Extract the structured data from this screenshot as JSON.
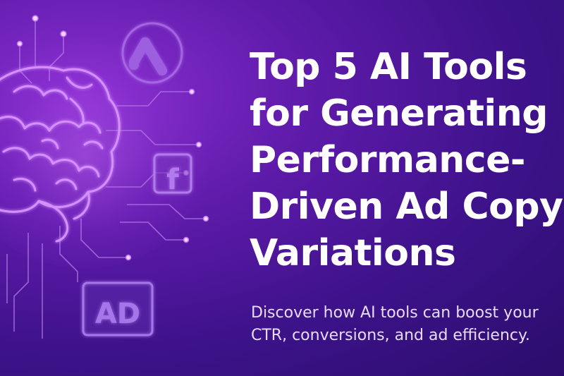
{
  "headline": {
    "lines": [
      "Top 5 AI Tools",
      "for Generating",
      "Performance-",
      "Driven Ad Copy",
      "Variations"
    ]
  },
  "subtitle": {
    "lines": [
      "Discover how AI tools can boost your",
      "CTR, conversions, and ad efficiency."
    ]
  },
  "badges": {
    "facebook": "f",
    "ad": "AD"
  },
  "icons": {
    "brain": "brain-icon",
    "google_ads": "google-ads-logo-icon",
    "facebook": "facebook-logo-icon",
    "ad": "ad-badge-icon"
  },
  "colors": {
    "background_dark": "#2a0d6b",
    "background_mid": "#5c1aa8",
    "accent_glow": "#c46cf5",
    "text_primary": "#ffffff",
    "text_secondary": "#e7dcfb"
  }
}
